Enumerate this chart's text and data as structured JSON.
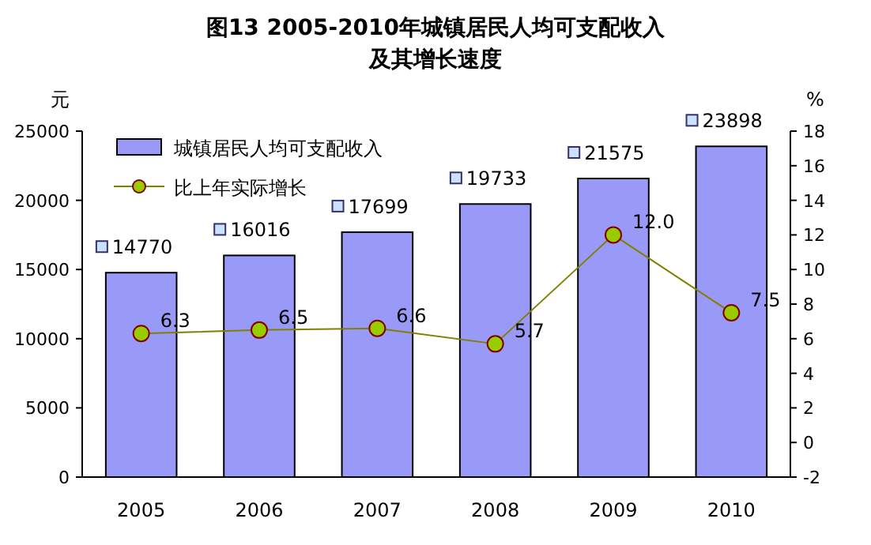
{
  "chart_data": {
    "type": "bar",
    "title": "图13 2005-2010年城镇居民人均可支配收入",
    "subtitle": "及其增长速度",
    "ylabel": "元",
    "y2label": "%",
    "categories": [
      "2005",
      "2006",
      "2007",
      "2008",
      "2009",
      "2010"
    ],
    "series": [
      {
        "name": "城镇居民人均可支配收入",
        "color": "#9999f8",
        "values": [
          14770,
          16016,
          17699,
          19733,
          21575,
          23898
        ]
      },
      {
        "name": "比上年实际增长",
        "type": "line",
        "axis": "y2",
        "color": "#808000",
        "marker": "circle",
        "values": [
          6.3,
          6.5,
          6.6,
          5.7,
          12.0,
          7.5
        ],
        "value_labels": [
          "6.3",
          "6.5",
          "6.6",
          "5.7",
          "12.0",
          "7.5"
        ]
      }
    ],
    "ylim": [
      0,
      25000
    ],
    "yticks": [
      0,
      5000,
      10000,
      15000,
      20000,
      25000
    ],
    "y2lim": [
      -2,
      18
    ],
    "y2ticks": [
      -2,
      0,
      2,
      4,
      6,
      8,
      10,
      12,
      14,
      16,
      18
    ],
    "data_labels": true,
    "legend": "top left"
  }
}
